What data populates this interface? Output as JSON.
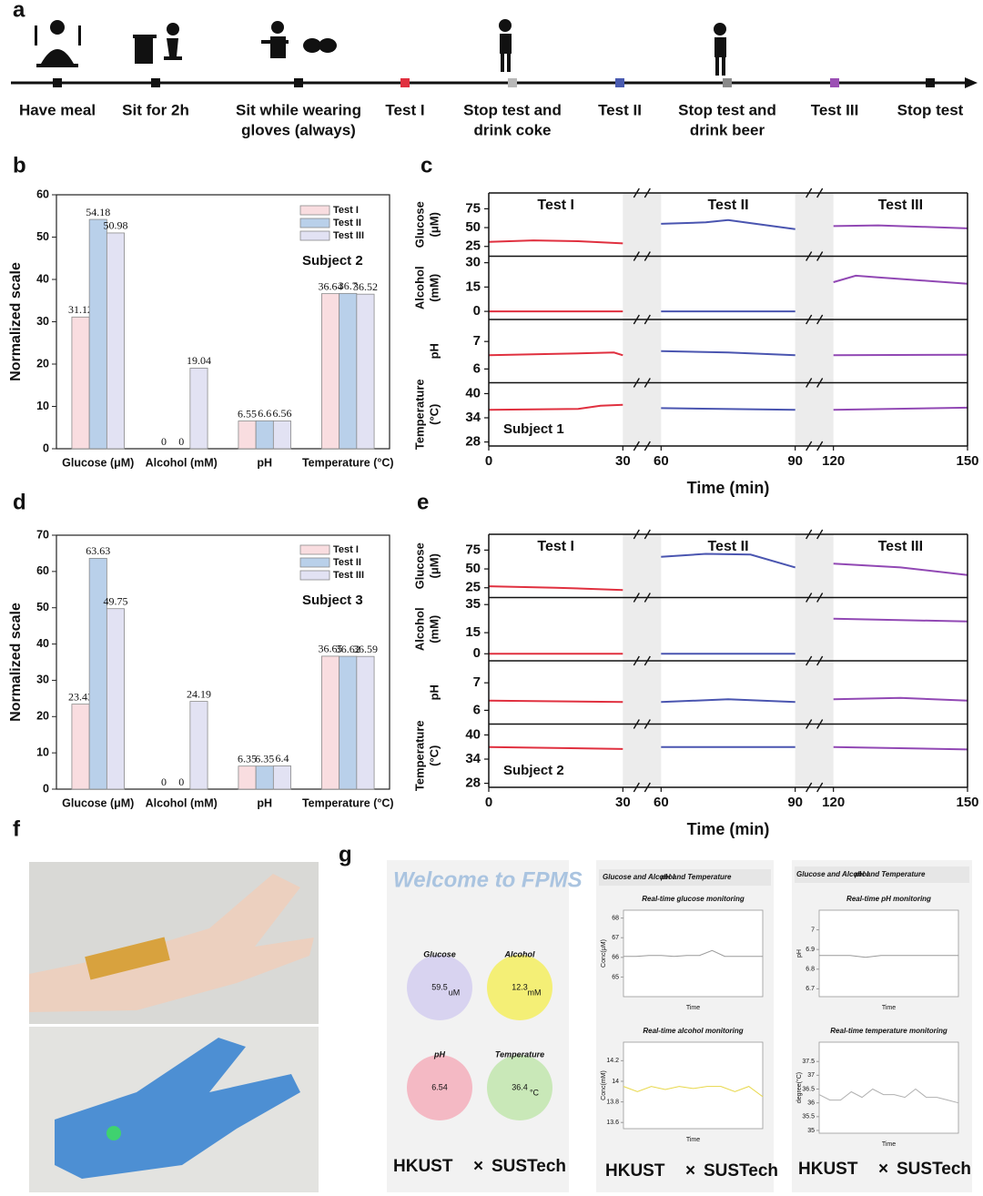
{
  "panel_labels": [
    "a",
    "b",
    "c",
    "d",
    "e",
    "f",
    "g"
  ],
  "timeline": {
    "events": [
      {
        "lines": [
          "Have meal"
        ],
        "color": "#111111"
      },
      {
        "lines": [
          "Sit for 2h"
        ],
        "color": "#111111"
      },
      {
        "lines": [
          "Sit while wearing",
          "gloves (always)"
        ],
        "color": "#111111"
      },
      {
        "lines": [
          "Test I"
        ],
        "color": "#e0303f"
      },
      {
        "lines": [
          "Stop test and",
          "drink coke"
        ],
        "color": "#b8b8b8"
      },
      {
        "lines": [
          "Test II"
        ],
        "color": "#4a5bb0"
      },
      {
        "lines": [
          "Stop test and",
          "drink beer"
        ],
        "color": "#8a8a8a"
      },
      {
        "lines": [
          "Test III"
        ],
        "color": "#9b4fb4"
      },
      {
        "lines": [
          "Stop test"
        ],
        "color": "#111111"
      }
    ]
  },
  "chart_data": [
    {
      "type": "bar",
      "subtitle": "Subject 2",
      "ylabel": "Normalized scale",
      "categories": [
        "Glucose (μM)",
        "Alcohol (mM)",
        "pH",
        "Temperature (°C)"
      ],
      "series": [
        {
          "name": "Test I",
          "color": "#f9dde0",
          "text_color": "#e0303f",
          "values": [
            31.12,
            0,
            6.55,
            36.64
          ]
        },
        {
          "name": "Test II",
          "color": "#b9d0ea",
          "text_color": "#4a5bb0",
          "values": [
            54.18,
            0,
            6.6,
            36.7
          ]
        },
        {
          "name": "Test III",
          "color": "#e2e2f3",
          "text_color": "#9b4fb4",
          "values": [
            50.98,
            19.04,
            6.56,
            36.52
          ]
        }
      ],
      "ylim": [
        0,
        60
      ],
      "yticks": [
        0,
        10,
        20,
        30,
        40,
        50,
        60
      ]
    },
    {
      "type": "line",
      "subtitle": "Subject 1",
      "xlabel": "Time (min)",
      "xlim": [
        0,
        150
      ],
      "xticks": [
        0,
        30,
        60,
        90,
        120,
        150
      ],
      "x_breaks": [
        [
          30,
          60
        ],
        [
          90,
          120
        ]
      ],
      "tests": [
        {
          "name": "Test I",
          "color": "#e0303f"
        },
        {
          "name": "Test II",
          "color": "#4a55b0"
        },
        {
          "name": "Test III",
          "color": "#9148b4"
        }
      ],
      "rows": [
        {
          "ylabel": [
            "Glucose",
            "(μM)"
          ],
          "ylim": [
            12,
            96
          ],
          "yticks": [
            25,
            50,
            75
          ],
          "series": [
            {
              "x": [
                0,
                10,
                20,
                30
              ],
              "values": [
                31,
                33,
                32,
                29
              ]
            },
            {
              "x": [
                60,
                70,
                75,
                80,
                90
              ],
              "values": [
                55,
                57,
                60,
                56,
                48
              ]
            },
            {
              "x": [
                120,
                130,
                140,
                150
              ],
              "values": [
                52,
                53,
                51,
                49
              ]
            }
          ]
        },
        {
          "ylabel": [
            "Alcohol",
            "(mM)"
          ],
          "ylim": [
            -5,
            34
          ],
          "yticks": [
            0,
            15,
            30
          ],
          "series": [
            {
              "x": [
                0,
                30
              ],
              "values": [
                0,
                0
              ]
            },
            {
              "x": [
                60,
                90
              ],
              "values": [
                0,
                0
              ]
            },
            {
              "x": [
                120,
                125,
                130,
                140,
                150
              ],
              "values": [
                18,
                22,
                21,
                19,
                17
              ]
            }
          ]
        },
        {
          "ylabel": [
            "pH"
          ],
          "ylim": [
            5.5,
            7.8
          ],
          "yticks": [
            6,
            7
          ],
          "series": [
            {
              "x": [
                0,
                15,
                28,
                30
              ],
              "values": [
                6.5,
                6.55,
                6.6,
                6.5
              ]
            },
            {
              "x": [
                60,
                75,
                90
              ],
              "values": [
                6.65,
                6.6,
                6.5
              ]
            },
            {
              "x": [
                120,
                150
              ],
              "values": [
                6.5,
                6.52
              ]
            }
          ]
        },
        {
          "ylabel": [
            "Temperature",
            "(°C)"
          ],
          "ylim": [
            27,
            42.7
          ],
          "yticks": [
            28,
            34,
            40
          ],
          "series": [
            {
              "x": [
                0,
                20,
                25,
                30
              ],
              "values": [
                36,
                36.2,
                37,
                37.2
              ]
            },
            {
              "x": [
                60,
                90
              ],
              "values": [
                36.4,
                36
              ]
            },
            {
              "x": [
                120,
                150
              ],
              "values": [
                36,
                36.5
              ]
            }
          ]
        }
      ]
    },
    {
      "type": "bar",
      "subtitle": "Subject 3",
      "ylabel": "Normalized scale",
      "categories": [
        "Glucose (μM)",
        "Alcohol (mM)",
        "pH",
        "Temperature (°C)"
      ],
      "series": [
        {
          "name": "Test I",
          "color": "#f9dde0",
          "text_color": "#e0303f",
          "values": [
            23.43,
            0,
            6.35,
            36.65
          ]
        },
        {
          "name": "Test II",
          "color": "#b9d0ea",
          "text_color": "#4a5bb0",
          "values": [
            63.63,
            0,
            6.35,
            36.62
          ]
        },
        {
          "name": "Test III",
          "color": "#e2e2f3",
          "text_color": "#9b4fb4",
          "values": [
            49.75,
            24.19,
            6.4,
            36.59
          ]
        }
      ],
      "ylim": [
        0,
        70
      ],
      "yticks": [
        0,
        10,
        20,
        30,
        40,
        50,
        60,
        70
      ]
    },
    {
      "type": "line",
      "subtitle": "Subject 2",
      "xlabel": "Time (min)",
      "xlim": [
        0,
        150
      ],
      "xticks": [
        0,
        30,
        60,
        90,
        120,
        150
      ],
      "x_breaks": [
        [
          30,
          60
        ],
        [
          90,
          120
        ]
      ],
      "tests": [
        {
          "name": "Test I",
          "color": "#e0303f"
        },
        {
          "name": "Test II",
          "color": "#4a55b0"
        },
        {
          "name": "Test III",
          "color": "#9148b4"
        }
      ],
      "rows": [
        {
          "ylabel": [
            "Glucose",
            "(μM)"
          ],
          "ylim": [
            12,
            96
          ],
          "yticks": [
            25,
            50,
            75
          ],
          "series": [
            {
              "x": [
                0,
                15,
                30
              ],
              "values": [
                27,
                25,
                22
              ]
            },
            {
              "x": [
                60,
                70,
                80,
                90
              ],
              "values": [
                66,
                70,
                69,
                52
              ]
            },
            {
              "x": [
                120,
                135,
                150
              ],
              "values": [
                57,
                52,
                42
              ]
            }
          ]
        },
        {
          "ylabel": [
            "Alcohol",
            "(mM)"
          ],
          "ylim": [
            -5,
            40
          ],
          "yticks": [
            0,
            15,
            35
          ],
          "series": [
            {
              "x": [
                0,
                30
              ],
              "values": [
                0,
                0
              ]
            },
            {
              "x": [
                60,
                90
              ],
              "values": [
                0,
                0
              ]
            },
            {
              "x": [
                120,
                150
              ],
              "values": [
                25,
                23
              ]
            }
          ]
        },
        {
          "ylabel": [
            "pH"
          ],
          "ylim": [
            5.5,
            7.8
          ],
          "yticks": [
            6,
            7
          ],
          "series": [
            {
              "x": [
                0,
                30
              ],
              "values": [
                6.35,
                6.3
              ]
            },
            {
              "x": [
                60,
                75,
                90
              ],
              "values": [
                6.3,
                6.4,
                6.3
              ]
            },
            {
              "x": [
                120,
                135,
                150
              ],
              "values": [
                6.4,
                6.45,
                6.35
              ]
            }
          ]
        },
        {
          "ylabel": [
            "Temperature",
            "(°C)"
          ],
          "ylim": [
            27,
            42.7
          ],
          "yticks": [
            28,
            34,
            40
          ],
          "series": [
            {
              "x": [
                0,
                30
              ],
              "values": [
                37,
                36.5
              ]
            },
            {
              "x": [
                60,
                90
              ],
              "values": [
                37,
                37
              ]
            },
            {
              "x": [
                120,
                150
              ],
              "values": [
                37,
                36.4
              ]
            }
          ]
        }
      ]
    },
    {
      "type": "line",
      "title": "Real-time glucose monitoring",
      "ylabel": "Conc(μM)",
      "xlabel": "Time",
      "color": "#9a9a9a",
      "categories": [
        null,
        null,
        null,
        null,
        null,
        null,
        null,
        null,
        null,
        null,
        null,
        null
      ],
      "values": [
        66.05,
        66.05,
        66.1,
        66.1,
        66.05,
        66.1,
        66.1,
        66.35,
        66.05,
        66.05,
        66.05,
        66.05
      ],
      "ylim": [
        64,
        68.4
      ],
      "yticks": [
        65,
        66,
        67,
        68
      ]
    },
    {
      "type": "line",
      "title": "Real-time alcohol monitoring",
      "ylabel": "Conc(mM)",
      "xlabel": "Time",
      "color": "#e8d84a",
      "categories": [
        null,
        null,
        null,
        null,
        null,
        null,
        null,
        null,
        null,
        null,
        null
      ],
      "values": [
        13.95,
        13.9,
        13.95,
        13.92,
        13.95,
        13.93,
        13.95,
        13.95,
        13.9,
        13.95,
        13.85
      ],
      "ylim": [
        13.54,
        14.38
      ],
      "yticks": [
        13.6,
        13.8,
        14,
        14.2
      ]
    },
    {
      "type": "line",
      "title": "Real-time pH monitoring",
      "ylabel": "pH",
      "xlabel": "Time",
      "color": "#9a9a9a",
      "categories": [
        null,
        null,
        null,
        null,
        null,
        null,
        null,
        null,
        null,
        null
      ],
      "values": [
        6.87,
        6.87,
        6.87,
        6.86,
        6.87,
        6.87,
        6.87,
        6.87,
        6.87,
        6.87
      ],
      "ylim": [
        6.66,
        7.1
      ],
      "yticks": [
        6.7,
        6.8,
        6.9,
        7
      ]
    },
    {
      "type": "line",
      "title": "Real-time temperature monitoring",
      "ylabel": "degree(°C)",
      "xlabel": "Time",
      "color": "#b0b0b0",
      "categories": [
        null,
        null,
        null,
        null,
        null,
        null,
        null,
        null,
        null,
        null,
        null,
        null,
        null,
        null
      ],
      "values": [
        36.3,
        36.1,
        36.1,
        36.4,
        36.2,
        36.5,
        36.3,
        36.3,
        36.2,
        36.5,
        36.2,
        36.2,
        36.1,
        36.0
      ],
      "ylim": [
        34.9,
        38.2
      ],
      "yticks": [
        35,
        35.5,
        36,
        36.5,
        37,
        37.5
      ]
    }
  ],
  "app": {
    "welcome": "Welcome to FPMS",
    "gauges": [
      {
        "label": "Glucose",
        "value": 59.5,
        "unit": "uM"
      },
      {
        "label": "Alcohol",
        "value": 12.3,
        "unit": "mM"
      },
      {
        "label": "pH",
        "value": 6.54
      },
      {
        "label": "Temperature",
        "value": 36.4,
        "unit": "°C"
      }
    ],
    "tabs": [
      "Glucose and Alcohol",
      "pH and Temperature"
    ],
    "logo": {
      "left": "HKUST",
      "sep": "×",
      "right": "SUSTech"
    }
  }
}
